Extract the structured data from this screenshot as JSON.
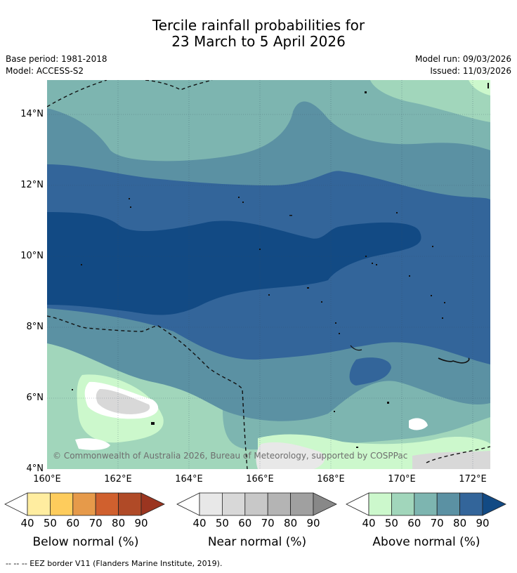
{
  "title_line1": "Tercile rainfall probabilities for",
  "title_line2": "23 March to 5 April 2026",
  "base_period": "Base period: 1981-2018",
  "model": "Model: ACCESS-S2",
  "model_run": "Model run: 09/03/2026",
  "issued": "Issued: 11/03/2026",
  "lat_labels": [
    "14°N",
    "12°N",
    "10°N",
    "8°N",
    "6°N",
    "4°N"
  ],
  "lon_labels": [
    "160°E",
    "162°E",
    "164°E",
    "166°E",
    "168°E",
    "170°E",
    "172°E"
  ],
  "copyright": "© Commonwealth of Australia 2026, Bureau of Meteorology, supported by COSPPac",
  "colorbars": [
    {
      "title": "Below normal (%)",
      "ticks": [
        "40",
        "50",
        "60",
        "70",
        "80",
        "90"
      ],
      "colors": [
        "#ffeda0",
        "#fecc5c",
        "#e69a4a",
        "#d0602e",
        "#b04a27",
        "#9b3520"
      ]
    },
    {
      "title": "Near normal (%)",
      "ticks": [
        "40",
        "50",
        "60",
        "70",
        "80",
        "90"
      ],
      "colors": [
        "#e8e8e8",
        "#d8d8d8",
        "#c8c8c8",
        "#b4b4b4",
        "#a0a0a0",
        "#888888"
      ]
    },
    {
      "title": "Above normal (%)",
      "ticks": [
        "40",
        "50",
        "60",
        "70",
        "80",
        "90"
      ],
      "colors": [
        "#ccf8cc",
        "#a1d6bb",
        "#7db5b0",
        "#5b91a3",
        "#33659a",
        "#124a84"
      ]
    }
  ],
  "footnote": "--  --  -- EEZ border V11 (Flanders Marine Institute, 2019)."
}
